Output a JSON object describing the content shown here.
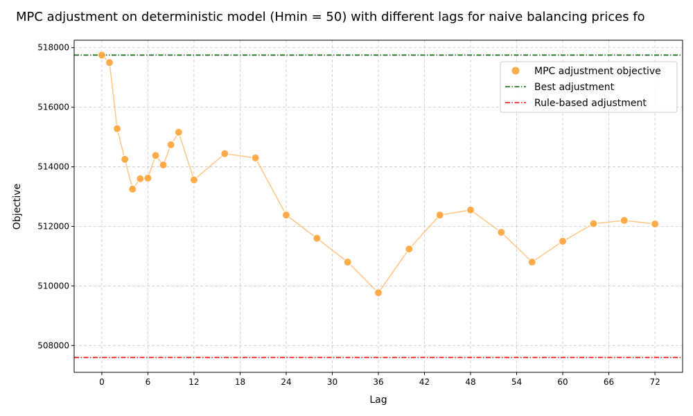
{
  "chart_data": {
    "type": "scatter",
    "title": "MPC adjustment on deterministic model (Hmin = 50) with different lags for naive balancing prices fo",
    "xlabel": "Lag",
    "ylabel": "Objective",
    "xlim": [
      -3.6,
      75.6
    ],
    "ylim": [
      507100,
      518250
    ],
    "xticks": [
      0,
      6,
      12,
      18,
      24,
      30,
      36,
      42,
      48,
      54,
      60,
      66,
      72
    ],
    "yticks": [
      508000,
      510000,
      512000,
      514000,
      516000,
      518000
    ],
    "grid": true,
    "legend_position": "top-right",
    "series": [
      {
        "name": "MPC adjustment objective",
        "color": "#ffa33a",
        "x": [
          0,
          1,
          2,
          3,
          4,
          5,
          6,
          7,
          8,
          9,
          10,
          12,
          16,
          20,
          24,
          28,
          32,
          36,
          40,
          44,
          48,
          52,
          56,
          60,
          64,
          68,
          72
        ],
        "y": [
          517750,
          517500,
          515280,
          514250,
          513250,
          513600,
          513620,
          514380,
          514060,
          514740,
          515160,
          513560,
          514440,
          514300,
          512380,
          511600,
          510800,
          509770,
          511240,
          512380,
          512550,
          511800,
          510800,
          511500,
          512090,
          512200,
          512080
        ]
      }
    ],
    "reference_lines": [
      {
        "name": "Best adjustment",
        "y": 517750,
        "color": "#006400",
        "style": "dashdot"
      },
      {
        "name": "Rule-based adjustment",
        "y": 507600,
        "color": "#ff0000",
        "style": "dashdot"
      }
    ]
  }
}
